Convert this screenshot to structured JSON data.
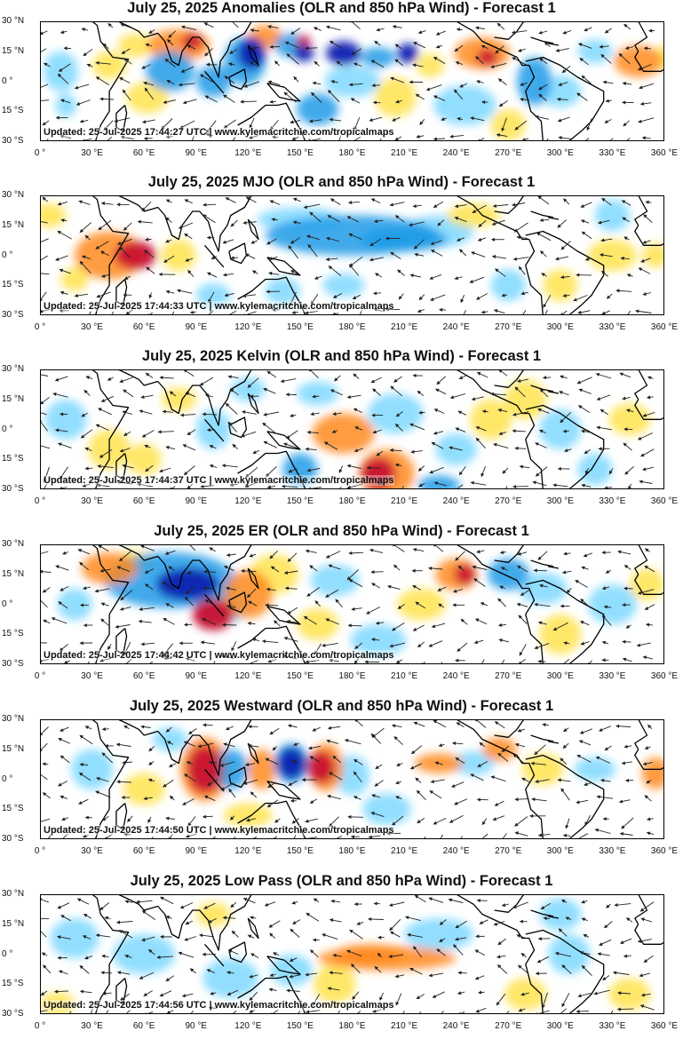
{
  "panels": [
    {
      "id": "anomalies",
      "title": "July 25, 2025 Anomalies (OLR and 850 hPa Wind) - Forecast 1",
      "updated": "Updated: 25-Jul-2025 17:44:27 UTC | www.kylemacritchie.com/tropicalmaps"
    },
    {
      "id": "mjo",
      "title": "July 25, 2025 MJO (OLR and 850 hPa Wind) - Forecast 1",
      "updated": "Updated: 25-Jul-2025 17:44:33 UTC | www.kylemacritchie.com/tropicalmaps"
    },
    {
      "id": "kelvin",
      "title": "July 25, 2025 Kelvin (OLR and 850 hPa Wind) - Forecast 1",
      "updated": "Updated: 25-Jul-2025 17:44:37 UTC | www.kylemacritchie.com/tropicalmaps"
    },
    {
      "id": "er",
      "title": "July 25, 2025 ER (OLR and 850 hPa Wind) - Forecast 1",
      "updated": "Updated: 25-Jul-2025 17:44:42 UTC | www.kylemacritchie.com/tropicalmaps"
    },
    {
      "id": "westward",
      "title": "July 25, 2025 Westward (OLR and 850 hPa Wind) - Forecast 1",
      "updated": "Updated: 25-Jul-2025 17:44:50 UTC | www.kylemacritchie.com/tropicalmaps"
    },
    {
      "id": "lowpass",
      "title": "July 25, 2025 Low Pass (OLR and 850 hPa Wind) - Forecast 1",
      "updated": "Updated: 25-Jul-2025 17:44:56 UTC | www.kylemacritchie.com/tropicalmaps"
    }
  ],
  "lat_labels": [
    "30 °N",
    "15 °N",
    "0 °",
    "15 °S",
    "30 °S"
  ],
  "lon_labels": [
    "0 °",
    "30 °E",
    "60 °E",
    "90 °E",
    "120 °E",
    "150 °E",
    "180 °E",
    "210 °E",
    "240 °E",
    "270 °E",
    "300 °E",
    "330 °E",
    "360 °E"
  ],
  "colors": {
    "suppressed_strong": "#c8102e",
    "suppressed": "#ff8a1e",
    "suppressed_weak": "#ffe34d",
    "enhanced_weak": "#7ed8ff",
    "enhanced": "#1e9be8",
    "enhanced_strong": "#0a1fb0",
    "coast": "#000000",
    "arrow": "#222222"
  }
}
